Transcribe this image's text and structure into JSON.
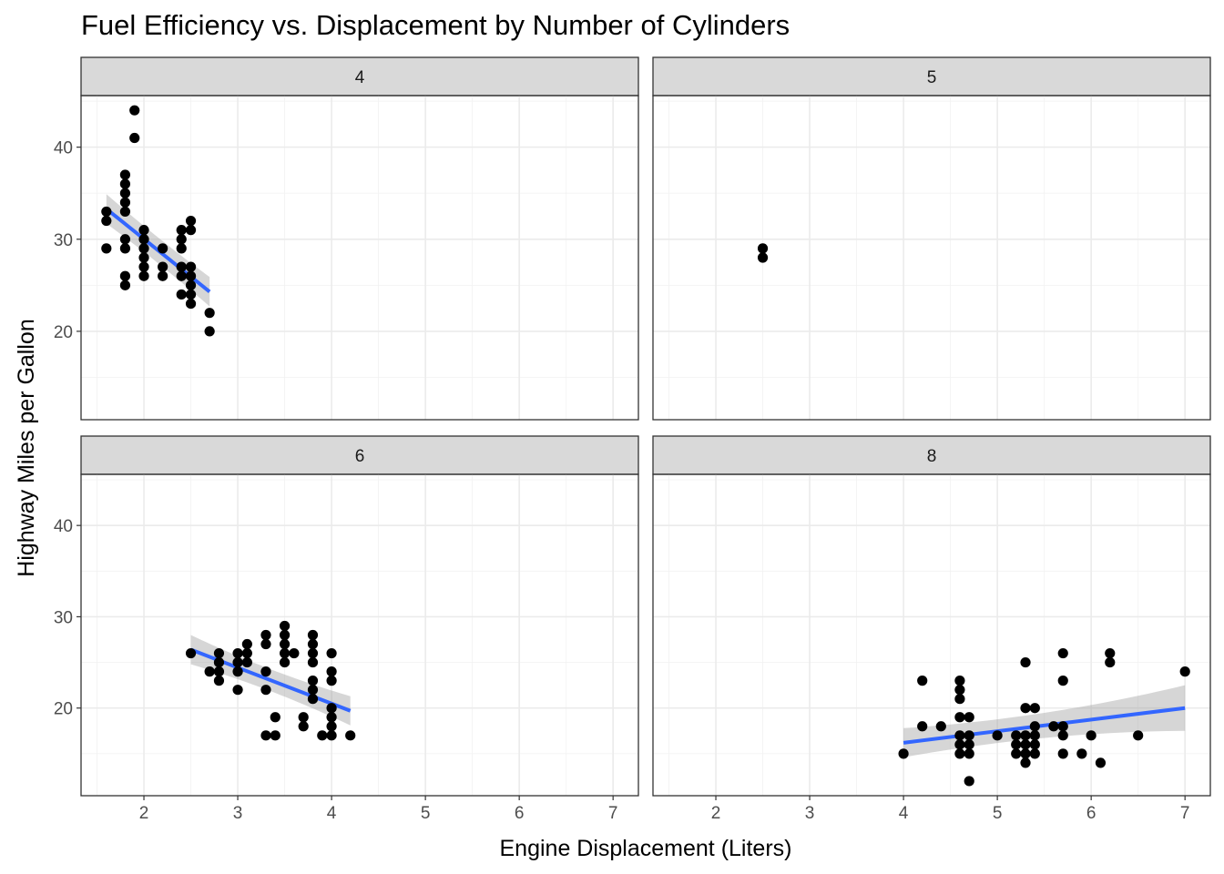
{
  "chart_data": {
    "type": "scatter",
    "title": "Fuel Efficiency vs. Displacement by Number of Cylinders",
    "xlabel": "Engine Displacement (Liters)",
    "ylabel": "Highway Miles per Gallon",
    "xlim": [
      1.33,
      7.27
    ],
    "ylim": [
      10.4,
      45.6
    ],
    "x_ticks": [
      2,
      3,
      4,
      5,
      6,
      7
    ],
    "y_ticks": [
      20,
      30,
      40
    ],
    "x_tick_labels": [
      "2",
      "3",
      "4",
      "5",
      "6",
      "7"
    ],
    "y_tick_labels": [
      "20",
      "30",
      "40"
    ],
    "grid": true,
    "point_color": "#000000",
    "fit_color": "#3366FF",
    "ribbon_color": "#999999",
    "facets": [
      {
        "label": "4",
        "points": [
          [
            1.6,
            33
          ],
          [
            1.6,
            32
          ],
          [
            1.6,
            29
          ],
          [
            1.8,
            37
          ],
          [
            1.8,
            36
          ],
          [
            1.8,
            35
          ],
          [
            1.8,
            34
          ],
          [
            1.8,
            33
          ],
          [
            1.8,
            30
          ],
          [
            1.8,
            29
          ],
          [
            1.8,
            26
          ],
          [
            1.8,
            25
          ],
          [
            1.9,
            44
          ],
          [
            1.9,
            41
          ],
          [
            2.0,
            31
          ],
          [
            2.0,
            30
          ],
          [
            2.0,
            29
          ],
          [
            2.0,
            28
          ],
          [
            2.0,
            27
          ],
          [
            2.0,
            26
          ],
          [
            2.2,
            29
          ],
          [
            2.2,
            27
          ],
          [
            2.2,
            26
          ],
          [
            2.4,
            31
          ],
          [
            2.4,
            30
          ],
          [
            2.4,
            29
          ],
          [
            2.4,
            27
          ],
          [
            2.4,
            26
          ],
          [
            2.4,
            24
          ],
          [
            2.5,
            32
          ],
          [
            2.5,
            31
          ],
          [
            2.5,
            27
          ],
          [
            2.5,
            26
          ],
          [
            2.5,
            25
          ],
          [
            2.5,
            24
          ],
          [
            2.5,
            23
          ],
          [
            2.7,
            22
          ],
          [
            2.7,
            20
          ]
        ],
        "fit": {
          "x0": 1.6,
          "y0": 33.3,
          "x1": 2.7,
          "y1": 24.3,
          "se": [
            1.6,
            1.2,
            1.6
          ]
        }
      },
      {
        "label": "5",
        "points": [
          [
            2.5,
            29
          ],
          [
            2.5,
            28
          ]
        ],
        "fit": null
      },
      {
        "label": "6",
        "points": [
          [
            2.5,
            26
          ],
          [
            2.7,
            24
          ],
          [
            2.8,
            26
          ],
          [
            2.8,
            25
          ],
          [
            2.8,
            24
          ],
          [
            2.8,
            23
          ],
          [
            3.0,
            26
          ],
          [
            3.0,
            25
          ],
          [
            3.0,
            24
          ],
          [
            3.0,
            22
          ],
          [
            3.1,
            27
          ],
          [
            3.1,
            26
          ],
          [
            3.1,
            25
          ],
          [
            3.3,
            28
          ],
          [
            3.3,
            27
          ],
          [
            3.3,
            24
          ],
          [
            3.3,
            22
          ],
          [
            3.3,
            17
          ],
          [
            3.4,
            19
          ],
          [
            3.4,
            17
          ],
          [
            3.5,
            29
          ],
          [
            3.5,
            28
          ],
          [
            3.5,
            27
          ],
          [
            3.5,
            26
          ],
          [
            3.5,
            25
          ],
          [
            3.6,
            26
          ],
          [
            3.7,
            19
          ],
          [
            3.7,
            18
          ],
          [
            3.8,
            28
          ],
          [
            3.8,
            27
          ],
          [
            3.8,
            26
          ],
          [
            3.8,
            25
          ],
          [
            3.8,
            23
          ],
          [
            3.8,
            22
          ],
          [
            3.8,
            21
          ],
          [
            3.9,
            17
          ],
          [
            4.0,
            26
          ],
          [
            4.0,
            24
          ],
          [
            4.0,
            23
          ],
          [
            4.0,
            20
          ],
          [
            4.0,
            19
          ],
          [
            4.0,
            18
          ],
          [
            4.0,
            17
          ],
          [
            4.2,
            17
          ]
        ],
        "fit": {
          "x0": 2.5,
          "y0": 26.4,
          "x1": 4.2,
          "y1": 19.7,
          "se": [
            1.6,
            0.8,
            1.6
          ]
        }
      },
      {
        "label": "8",
        "points": [
          [
            4.0,
            15
          ],
          [
            4.2,
            23
          ],
          [
            4.2,
            18
          ],
          [
            4.4,
            18
          ],
          [
            4.6,
            23
          ],
          [
            4.6,
            22
          ],
          [
            4.6,
            21
          ],
          [
            4.6,
            19
          ],
          [
            4.6,
            17
          ],
          [
            4.6,
            16
          ],
          [
            4.6,
            15
          ],
          [
            4.7,
            19
          ],
          [
            4.7,
            17
          ],
          [
            4.7,
            16
          ],
          [
            4.7,
            15
          ],
          [
            4.7,
            12
          ],
          [
            5.0,
            17
          ],
          [
            5.2,
            17
          ],
          [
            5.2,
            16
          ],
          [
            5.2,
            15
          ],
          [
            5.3,
            25
          ],
          [
            5.3,
            20
          ],
          [
            5.3,
            17
          ],
          [
            5.3,
            16
          ],
          [
            5.3,
            15
          ],
          [
            5.3,
            14
          ],
          [
            5.4,
            20
          ],
          [
            5.4,
            18
          ],
          [
            5.4,
            17
          ],
          [
            5.4,
            16
          ],
          [
            5.4,
            15
          ],
          [
            5.6,
            18
          ],
          [
            5.7,
            26
          ],
          [
            5.7,
            23
          ],
          [
            5.7,
            18
          ],
          [
            5.7,
            17
          ],
          [
            5.7,
            15
          ],
          [
            5.9,
            15
          ],
          [
            6.0,
            17
          ],
          [
            6.1,
            14
          ],
          [
            6.2,
            26
          ],
          [
            6.2,
            25
          ],
          [
            6.5,
            17
          ],
          [
            7.0,
            24
          ]
        ],
        "fit": {
          "x0": 4.0,
          "y0": 16.2,
          "x1": 7.0,
          "y1": 20.0,
          "se": [
            1.6,
            0.7,
            2.5
          ]
        }
      }
    ]
  }
}
